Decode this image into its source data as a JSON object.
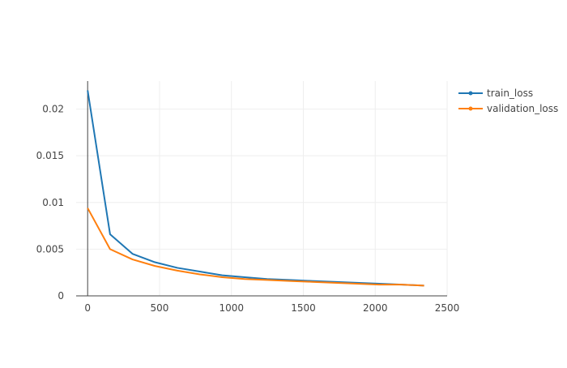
{
  "chart_data": {
    "type": "line",
    "title": "",
    "xlabel": "",
    "ylabel": "",
    "xlim": [
      -80,
      2500
    ],
    "ylim": [
      0,
      0.023
    ],
    "grid": true,
    "legend_position": "top-right",
    "x_ticks": [
      0,
      500,
      1000,
      1500,
      2000,
      2500
    ],
    "x_tick_labels": [
      "0",
      "500",
      "1000",
      "1500",
      "2000",
      "2500"
    ],
    "y_ticks": [
      0,
      0.005,
      0.01,
      0.015,
      0.02
    ],
    "y_tick_labels": [
      "0",
      "0.005",
      "0.01",
      "0.015",
      "0.02"
    ],
    "series": [
      {
        "name": "train_loss",
        "color": "#1f77b4",
        "x": [
          0,
          156,
          312,
          468,
          624,
          780,
          936,
          1092,
          1248,
          1404,
          1560,
          1716,
          1872,
          2028,
          2184,
          2340
        ],
        "y": [
          0.022,
          0.0066,
          0.0045,
          0.0036,
          0.003,
          0.0026,
          0.0022,
          0.002,
          0.0018,
          0.0017,
          0.0016,
          0.0015,
          0.0014,
          0.0013,
          0.0012,
          0.0011
        ]
      },
      {
        "name": "validation_loss",
        "color": "#ff7f0e",
        "x": [
          0,
          156,
          312,
          468,
          624,
          780,
          936,
          1092,
          1248,
          1404,
          1560,
          1716,
          1872,
          2028,
          2184,
          2340
        ],
        "y": [
          0.0094,
          0.005,
          0.0039,
          0.0032,
          0.0027,
          0.0023,
          0.002,
          0.0018,
          0.0017,
          0.0016,
          0.0015,
          0.0014,
          0.0013,
          0.0012,
          0.0012,
          0.0011
        ]
      }
    ]
  }
}
